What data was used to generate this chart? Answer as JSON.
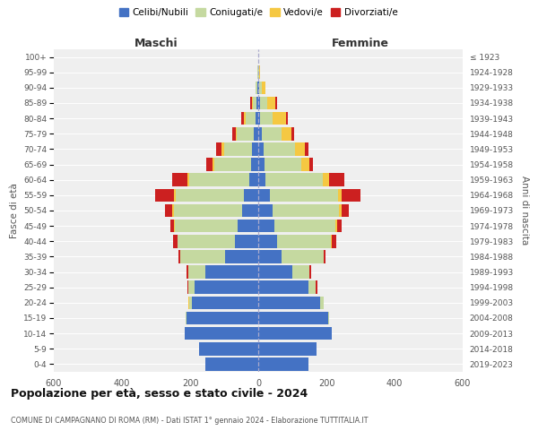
{
  "age_groups": [
    "0-4",
    "5-9",
    "10-14",
    "15-19",
    "20-24",
    "25-29",
    "30-34",
    "35-39",
    "40-44",
    "45-49",
    "50-54",
    "55-59",
    "60-64",
    "65-69",
    "70-74",
    "75-79",
    "80-84",
    "85-89",
    "90-94",
    "95-99",
    "100+"
  ],
  "birth_years": [
    "2019-2023",
    "2014-2018",
    "2009-2013",
    "2004-2008",
    "1999-2003",
    "1994-1998",
    "1989-1993",
    "1984-1988",
    "1979-1983",
    "1974-1978",
    "1969-1973",
    "1964-1968",
    "1959-1963",
    "1954-1958",
    "1949-1953",
    "1944-1948",
    "1939-1943",
    "1934-1938",
    "1929-1933",
    "1924-1928",
    "≤ 1923"
  ],
  "maschi": {
    "celibi": [
      155,
      175,
      215,
      210,
      195,
      188,
      155,
      98,
      68,
      60,
      48,
      42,
      27,
      20,
      18,
      14,
      9,
      5,
      2,
      1,
      0
    ],
    "coniugati": [
      0,
      0,
      0,
      2,
      8,
      18,
      50,
      130,
      168,
      185,
      200,
      200,
      175,
      110,
      82,
      48,
      28,
      12,
      5,
      1,
      0
    ],
    "vedovi": [
      0,
      0,
      0,
      0,
      2,
      0,
      0,
      0,
      0,
      2,
      5,
      5,
      5,
      5,
      8,
      5,
      5,
      2,
      1,
      0,
      0
    ],
    "divorziati": [
      0,
      0,
      0,
      0,
      0,
      2,
      5,
      5,
      15,
      12,
      22,
      55,
      45,
      18,
      15,
      10,
      8,
      5,
      0,
      0,
      0
    ]
  },
  "femmine": {
    "nubili": [
      148,
      172,
      215,
      205,
      182,
      148,
      100,
      68,
      55,
      48,
      42,
      35,
      22,
      18,
      15,
      10,
      5,
      5,
      2,
      1,
      0
    ],
    "coniugate": [
      0,
      0,
      0,
      2,
      10,
      20,
      50,
      125,
      158,
      178,
      195,
      198,
      168,
      108,
      92,
      58,
      38,
      20,
      8,
      2,
      0
    ],
    "vedove": [
      0,
      0,
      0,
      0,
      0,
      0,
      0,
      0,
      2,
      5,
      8,
      12,
      18,
      25,
      30,
      30,
      38,
      25,
      12,
      2,
      0
    ],
    "divorziate": [
      0,
      0,
      0,
      0,
      0,
      5,
      5,
      5,
      15,
      15,
      22,
      55,
      45,
      10,
      10,
      8,
      5,
      5,
      0,
      0,
      0
    ]
  },
  "colors": {
    "celibi": "#4472C4",
    "coniugati": "#C5D9A0",
    "vedovi": "#F5C842",
    "divorziati": "#CC2020"
  },
  "title": "Popolazione per età, sesso e stato civile - 2024",
  "subtitle": "COMUNE DI CAMPAGNANO DI ROMA (RM) - Dati ISTAT 1° gennaio 2024 - Elaborazione TUTTITALIA.IT",
  "xlabel_left": "Maschi",
  "xlabel_right": "Femmine",
  "ylabel_left": "Fasce di età",
  "ylabel_right": "Anni di nascita",
  "xlim": 600,
  "legend_labels": [
    "Celibi/Nubili",
    "Coniugati/e",
    "Vedovi/e",
    "Divorziati/e"
  ],
  "background_color": "#FFFFFF",
  "plot_bg_color": "#EFEFEF"
}
